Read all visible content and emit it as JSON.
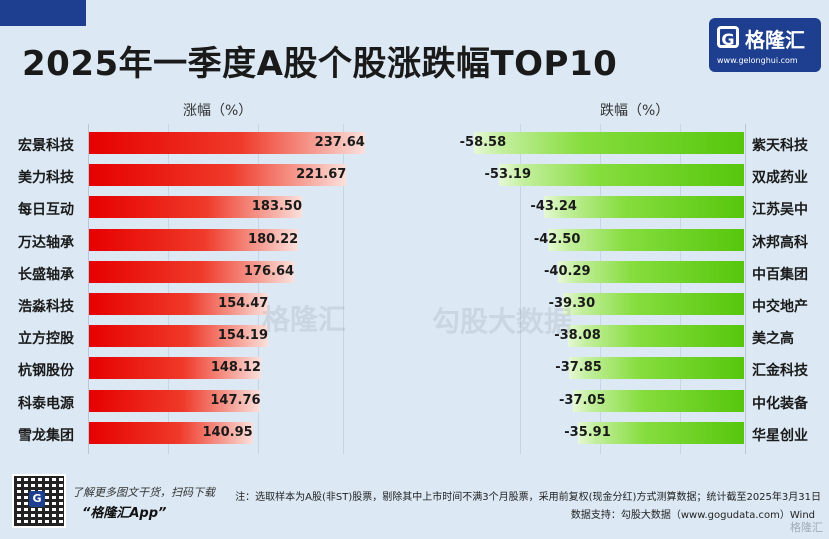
{
  "header": {
    "title": "2025年一季度A股个股涨跌幅TOP10",
    "logo_name": "格隆汇",
    "logo_url": "www.gelonghui.com",
    "logo_mark": "G"
  },
  "colors": {
    "rise": "#e60000",
    "fall": "#56c60c",
    "brand": "#1e3f8f"
  },
  "chart_data": [
    {
      "type": "bar",
      "orientation": "horizontal",
      "xlabel": "涨幅（%）",
      "xlim": [
        0,
        250
      ],
      "categories": [
        "宏景科技",
        "美力科技",
        "每日互动",
        "万达轴承",
        "长盛轴承",
        "浩淼科技",
        "立方控股",
        "杭钢股份",
        "科泰电源",
        "雪龙集团"
      ],
      "values": [
        237.64,
        221.67,
        183.5,
        180.22,
        176.64,
        154.47,
        154.19,
        148.12,
        147.76,
        140.95
      ],
      "labels": [
        "237.64",
        "221.67",
        "183.50",
        "180.22",
        "176.64",
        "154.47",
        "154.19",
        "148.12",
        "147.76",
        "140.95"
      ]
    },
    {
      "type": "bar",
      "orientation": "horizontal",
      "xlabel": "跌幅（%）",
      "xlim": [
        -65,
        0
      ],
      "categories": [
        "紫天科技",
        "双成药业",
        "江苏吴中",
        "沐邦高科",
        "中百集团",
        "中交地产",
        "美之高",
        "汇金科技",
        "中化装备",
        "华星创业"
      ],
      "values": [
        -58.58,
        -53.19,
        -43.24,
        -42.5,
        -40.29,
        -39.3,
        -38.08,
        -37.85,
        -37.05,
        -35.91
      ],
      "labels": [
        "-58.58",
        "-53.19",
        "-43.24",
        "-42.50",
        "-40.29",
        "-39.30",
        "-38.08",
        "-37.85",
        "-37.05",
        "-35.91"
      ]
    }
  ],
  "watermarks": {
    "left": "格隆汇",
    "right": "勾股大数据",
    "corner": "格隆汇"
  },
  "footer": {
    "qr_center": "G",
    "promo": "了解更多图文干货，扫码下载",
    "app": "“格隆汇App”",
    "note": "注：选取样本为A股(非ST)股票，剔除其中上市时间不满3个月股票，采用前复权(现金分红)方式测算数据；统计截至2025年3月31日",
    "source": "数据支持：勾股大数据（www.gogudata.com）Wind"
  }
}
